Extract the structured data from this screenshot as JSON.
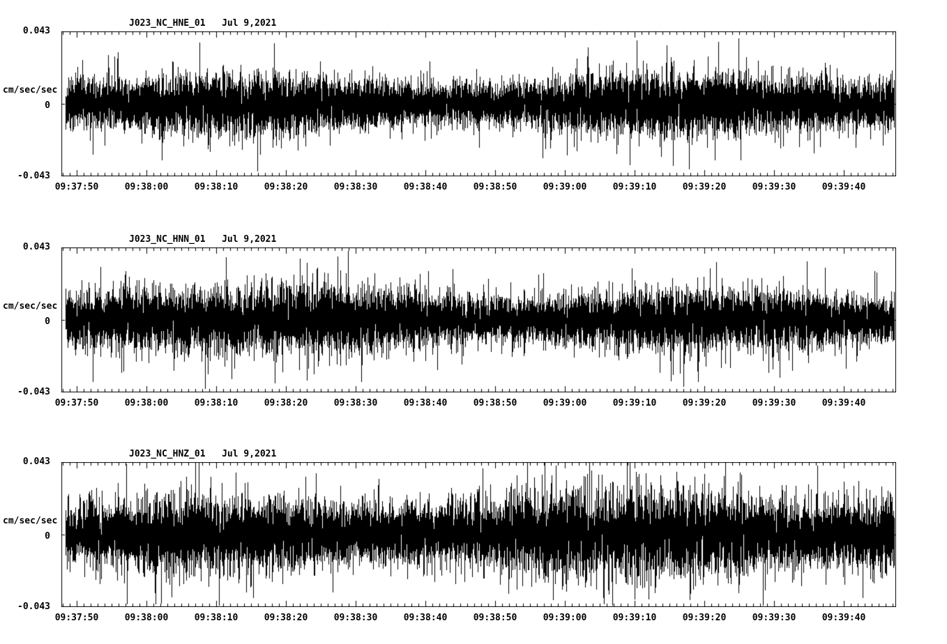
{
  "page": {
    "background_color": "#ffffff",
    "line_color": "#000000"
  },
  "chart_data": [
    {
      "type": "line",
      "subtype": "seismogram",
      "title": "J023_NC_HNE_01",
      "date_label": "Jul 9,2021",
      "ylabel": "cm/sec/sec",
      "ylim": [
        -0.043,
        0.043
      ],
      "ytick_labels": [
        "0.043",
        "0",
        "-0.043"
      ],
      "x_tick_labels": [
        "09:37:50",
        "09:38:00",
        "09:38:10",
        "09:38:20",
        "09:38:30",
        "09:38:40",
        "09:38:50",
        "09:39:00",
        "09:39:10",
        "09:39:20",
        "09:39:30",
        "09:39:40"
      ],
      "x_minor_tick_seconds": 1,
      "x_major_tick_seconds": 10,
      "grid": false,
      "legend": "none",
      "signal": "continuous broadband ground-acceleration noise, no discrete event onset",
      "noise_sigma": 0.0085,
      "peak_amplitude": 0.04,
      "seed": 11
    },
    {
      "type": "line",
      "subtype": "seismogram",
      "title": "J023_NC_HNN_01",
      "date_label": "Jul 9,2021",
      "ylabel": "cm/sec/sec",
      "ylim": [
        -0.043,
        0.043
      ],
      "ytick_labels": [
        "0.043",
        "0",
        "-0.043"
      ],
      "x_tick_labels": [
        "09:37:50",
        "09:38:00",
        "09:38:10",
        "09:38:20",
        "09:38:30",
        "09:38:40",
        "09:38:50",
        "09:39:00",
        "09:39:10",
        "09:39:20",
        "09:39:30",
        "09:39:40"
      ],
      "x_minor_tick_seconds": 1,
      "x_major_tick_seconds": 10,
      "grid": false,
      "legend": "none",
      "signal": "continuous broadband ground-acceleration noise, no discrete event onset",
      "noise_sigma": 0.0088,
      "peak_amplitude": 0.04,
      "seed": 23
    },
    {
      "type": "line",
      "subtype": "seismogram",
      "title": "J023_NC_HNZ_01",
      "date_label": "Jul 9,2021",
      "ylabel": "cm/sec/sec",
      "ylim": [
        -0.043,
        0.043
      ],
      "ytick_labels": [
        "0.043",
        "0",
        "-0.043"
      ],
      "x_tick_labels": [
        "09:37:50",
        "09:38:00",
        "09:38:10",
        "09:38:20",
        "09:38:30",
        "09:38:40",
        "09:38:50",
        "09:39:00",
        "09:39:10",
        "09:39:20",
        "09:39:30",
        "09:39:40"
      ],
      "x_minor_tick_seconds": 1,
      "x_major_tick_seconds": 10,
      "grid": false,
      "legend": "none",
      "signal": "continuous broadband ground-acceleration noise, no discrete event onset",
      "noise_sigma": 0.0105,
      "peak_amplitude": 0.042,
      "seed": 37
    }
  ]
}
